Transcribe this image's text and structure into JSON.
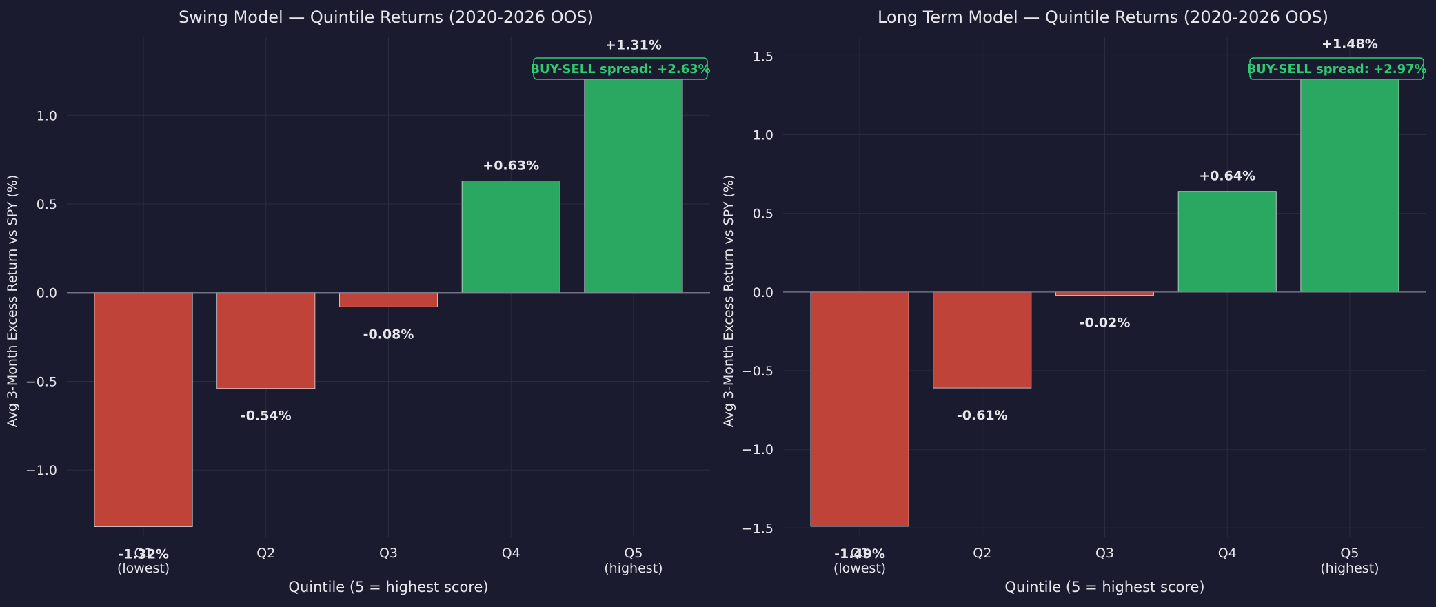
{
  "colors": {
    "background": "#1a1b2e",
    "positive": "#2aa862",
    "negative": "#c0433a",
    "text": "#e6e6ec",
    "annotation": "#2ecc71",
    "grid": "#2a2c40",
    "zero_line": "#7f8092"
  },
  "chart_data": [
    {
      "type": "bar",
      "title": "Swing Model — Quintile Returns (2020-2026 OOS)",
      "xlabel": "Quintile (5 = highest score)",
      "ylabel": "Avg 3-Month Excess Return vs SPY (%)",
      "categories": [
        "Q1\n(lowest)",
        "Q2",
        "Q3",
        "Q4",
        "Q5\n(highest)"
      ],
      "values": [
        -1.32,
        -0.54,
        -0.08,
        0.63,
        1.31
      ],
      "value_labels": [
        "-1.32%",
        "-0.54%",
        "-0.08%",
        "+0.63%",
        "+1.31%"
      ],
      "yticks": [
        -1.0,
        -0.5,
        0.0,
        0.5,
        1.0
      ],
      "ytick_labels": [
        "−1.0",
        "−0.5",
        "0.0",
        "0.5",
        "1.0"
      ],
      "ylim": [
        -1.38,
        1.44
      ],
      "grid": true,
      "annotation": "BUY-SELL spread: +2.63%",
      "annotation_placement": "top-right"
    },
    {
      "type": "bar",
      "title": "Long Term Model — Quintile Returns (2020-2026 OOS)",
      "xlabel": "Quintile (5 = highest score)",
      "ylabel": "Avg 3-Month Excess Return vs SPY (%)",
      "categories": [
        "Q1\n(lowest)",
        "Q2",
        "Q3",
        "Q4",
        "Q5\n(highest)"
      ],
      "values": [
        -1.49,
        -0.61,
        -0.02,
        0.64,
        1.48
      ],
      "value_labels": [
        "-1.49%",
        "-0.61%",
        "-0.02%",
        "+0.64%",
        "+1.48%"
      ],
      "yticks": [
        -1.5,
        -1.0,
        -0.5,
        0.0,
        0.5,
        1.0,
        1.5
      ],
      "ytick_labels": [
        "−1.5",
        "−1.0",
        "−0.5",
        "0.0",
        "0.5",
        "1.0",
        "1.5"
      ],
      "ylim": [
        -1.56,
        1.62
      ],
      "grid": true,
      "annotation": "BUY-SELL spread: +2.97%",
      "annotation_placement": "top-right"
    }
  ]
}
